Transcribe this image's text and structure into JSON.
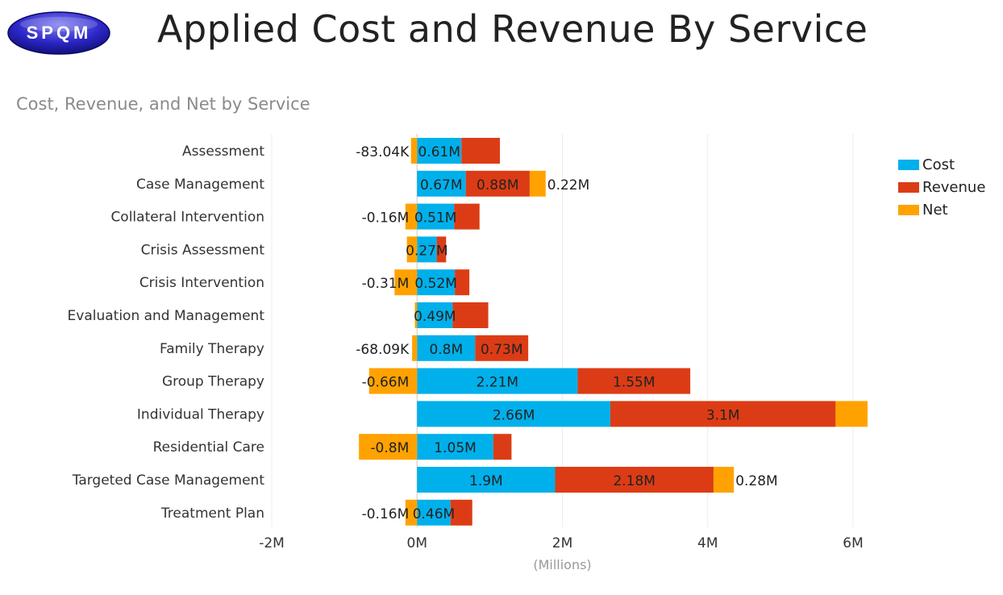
{
  "header": {
    "logo_text": "SPQM",
    "title": "Applied Cost and Revenue By Service"
  },
  "colors": {
    "cost": "#00b0eb",
    "revenue": "#dc3c15",
    "net": "#ffa200"
  },
  "chart_data": {
    "type": "bar",
    "orientation": "horizontal",
    "stacking": "stacked",
    "title": "Cost, Revenue, and Net by Service",
    "xlabel": "(Millions)",
    "ylabel": "",
    "xlim": [
      -2,
      6
    ],
    "xticks": [
      -2,
      0,
      2,
      4,
      6
    ],
    "xtick_labels": [
      "-2M",
      "0M",
      "2M",
      "4M",
      "6M"
    ],
    "gridlines": true,
    "legend_position": "top-right",
    "categories": [
      "Assessment",
      "Case Management",
      "Collateral Intervention",
      "Crisis Assessment",
      "Crisis Intervention",
      "Evaluation and Management",
      "Family Therapy",
      "Group Therapy",
      "Individual Therapy",
      "Residential Care",
      "Targeted Case Management",
      "Treatment Plan"
    ],
    "series": [
      {
        "name": "Cost",
        "color_key": "cost",
        "values": [
          0.61,
          0.67,
          0.51,
          0.27,
          0.52,
          0.49,
          0.8,
          2.21,
          2.66,
          1.05,
          1.9,
          0.46
        ],
        "labels": [
          "0.61M",
          "0.67M",
          "0.51M",
          "0.27M",
          "0.52M",
          "0.49M",
          "0.8M",
          "2.21M",
          "2.66M",
          "1.05M",
          "1.9M",
          "0.46M"
        ]
      },
      {
        "name": "Revenue",
        "color_key": "revenue",
        "values": [
          0.53,
          0.88,
          0.35,
          0.13,
          0.2,
          0.49,
          0.73,
          1.55,
          3.1,
          0.25,
          2.18,
          0.3
        ],
        "labels": [
          "",
          "0.88M",
          "",
          "",
          "",
          "",
          "0.73M",
          "1.55M",
          "3.1M",
          "",
          "2.18M",
          ""
        ]
      },
      {
        "name": "Net",
        "color_key": "net",
        "values": [
          -0.083,
          0.22,
          -0.16,
          -0.14,
          -0.31,
          -0.03,
          -0.068,
          -0.66,
          0.44,
          -0.8,
          0.28,
          -0.16
        ],
        "labels": [
          "-83.04K",
          "0.22M",
          "-0.16M",
          "",
          "-0.31M",
          "",
          "-68.09K",
          "-0.66M",
          "",
          "-0.8M",
          "0.28M",
          "-0.16M"
        ]
      }
    ]
  }
}
